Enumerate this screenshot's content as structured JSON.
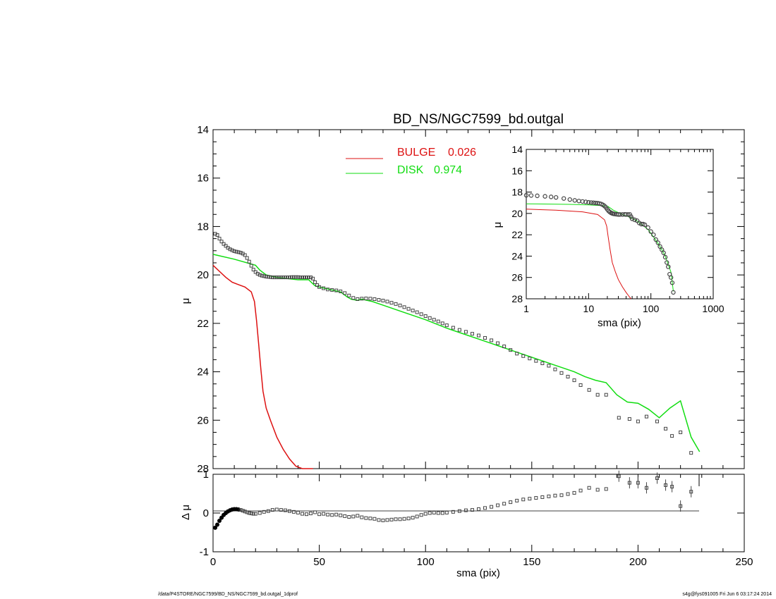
{
  "footer": {
    "left": "/data/P4STORE/NGC7599/BD_NS/NGC7599_bd.outgal_1dprof",
    "right": "s4g@fys091005  Fri Jun  6 03:17:24 2014"
  },
  "colors": {
    "bulge": "#dd1111",
    "disk": "#11dd11",
    "data": "#444444"
  },
  "chart_data": [
    {
      "type": "line",
      "panel": "main",
      "title": "BD_NS/NGC7599_bd.outgal",
      "xlabel": "",
      "ylabel": "μ",
      "xlim": [
        0,
        250
      ],
      "ylim": [
        28,
        14
      ],
      "y_ticks": [
        14,
        16,
        18,
        20,
        22,
        24,
        26,
        28
      ],
      "y_tick_labels": [
        "14",
        "16",
        "18",
        "20",
        "22",
        "24",
        "26",
        "28"
      ],
      "legend": [
        {
          "label": "BULGE",
          "value": "0.026",
          "color": "#dd1111"
        },
        {
          "label": "DISK",
          "value": "0.974",
          "color": "#11dd11"
        }
      ],
      "series": [
        {
          "name": "BULGE",
          "color": "#dd1111",
          "x": [
            0,
            3,
            6,
            9,
            12,
            15,
            18,
            19.5,
            20.5,
            21.5,
            22.5,
            23.5,
            25,
            27,
            30,
            33,
            36,
            39,
            42,
            45,
            47
          ],
          "y": [
            19.6,
            19.85,
            20.1,
            20.3,
            20.4,
            20.5,
            20.7,
            21.1,
            21.9,
            22.9,
            23.9,
            24.8,
            25.5,
            26.0,
            26.7,
            27.2,
            27.6,
            27.9,
            28.0,
            28.2,
            28.4
          ]
        },
        {
          "name": "DISK",
          "color": "#11dd11",
          "x": [
            0,
            10,
            20,
            22,
            25,
            30,
            40,
            45,
            48,
            50,
            55,
            60,
            63,
            65,
            68,
            70,
            75,
            80,
            90,
            100,
            110,
            120,
            130,
            135,
            140,
            145,
            150,
            155,
            160,
            165,
            170,
            175,
            180,
            185,
            190,
            195,
            200,
            205,
            210,
            215,
            220,
            225,
            229
          ],
          "y": [
            19.15,
            19.35,
            19.6,
            19.8,
            20.0,
            20.1,
            20.2,
            20.2,
            20.45,
            20.5,
            20.6,
            20.7,
            20.9,
            21.0,
            21.05,
            21.0,
            21.1,
            21.25,
            21.55,
            21.85,
            22.2,
            22.5,
            22.8,
            22.95,
            23.1,
            23.25,
            23.4,
            23.55,
            23.7,
            23.85,
            24.0,
            24.2,
            24.35,
            24.45,
            24.95,
            25.25,
            25.3,
            25.55,
            25.9,
            25.5,
            25.2,
            26.7,
            27.3
          ]
        },
        {
          "name": "",
          "style": "markers",
          "color": "#444444",
          "x": [
            1,
            2,
            3,
            4,
            5,
            6,
            7,
            8,
            9,
            10,
            11,
            12,
            13,
            14,
            15,
            16,
            17,
            18,
            19,
            20,
            21,
            22,
            23,
            24,
            25,
            26,
            27,
            28,
            29,
            30,
            31,
            32,
            33,
            34,
            35,
            36,
            37,
            38,
            39,
            40,
            41,
            42,
            43,
            44,
            45,
            46,
            47,
            48,
            49,
            50,
            52,
            54,
            56,
            58,
            60,
            62,
            64,
            66,
            68,
            70,
            72,
            74,
            76,
            78,
            80,
            82,
            84,
            86,
            88,
            90,
            92,
            94,
            96,
            98,
            100,
            102,
            104,
            106,
            108,
            110,
            113,
            116,
            119,
            122,
            125,
            128,
            131,
            134,
            137,
            140,
            143,
            146,
            149,
            152,
            155,
            158,
            161,
            164,
            167,
            170,
            173,
            177,
            181,
            185,
            191,
            196,
            200,
            204,
            209,
            213,
            216,
            220,
            225
          ],
          "y": [
            18.3,
            18.35,
            18.5,
            18.62,
            18.72,
            18.8,
            18.88,
            18.94,
            18.98,
            19.02,
            19.04,
            19.06,
            19.08,
            19.12,
            19.18,
            19.3,
            19.45,
            19.62,
            19.78,
            19.88,
            19.95,
            20.0,
            20.03,
            20.05,
            20.07,
            20.08,
            20.09,
            20.1,
            20.1,
            20.1,
            20.1,
            20.1,
            20.1,
            20.1,
            20.1,
            20.1,
            20.09,
            20.09,
            20.09,
            20.09,
            20.1,
            20.1,
            20.1,
            20.1,
            20.1,
            20.1,
            20.15,
            20.3,
            20.42,
            20.5,
            20.55,
            20.6,
            20.62,
            20.64,
            20.68,
            20.75,
            20.85,
            20.95,
            21.0,
            20.98,
            20.97,
            20.98,
            21.0,
            21.03,
            21.06,
            21.1,
            21.15,
            21.2,
            21.26,
            21.33,
            21.4,
            21.47,
            21.54,
            21.62,
            21.7,
            21.78,
            21.85,
            21.92,
            22.0,
            22.08,
            22.18,
            22.27,
            22.35,
            22.43,
            22.5,
            22.6,
            22.7,
            22.82,
            22.95,
            23.1,
            23.25,
            23.35,
            23.45,
            23.55,
            23.65,
            23.75,
            23.9,
            24.05,
            24.2,
            24.35,
            24.55,
            24.75,
            24.95,
            24.95,
            25.9,
            25.95,
            26.05,
            25.85,
            26.05,
            26.35,
            26.65,
            26.5,
            27.35
          ]
        }
      ]
    },
    {
      "type": "scatter",
      "panel": "residual",
      "xlabel": "sma (pix)",
      "ylabel": "Δ μ",
      "xlim": [
        0,
        250
      ],
      "ylim": [
        -1,
        1
      ],
      "x_ticks": [
        0,
        50,
        100,
        150,
        200,
        250
      ],
      "x_tick_labels": [
        "0",
        "50",
        "100",
        "150",
        "200",
        "250"
      ],
      "y_ticks": [
        1,
        0,
        -1
      ],
      "y_tick_labels": [
        "1",
        "0",
        "-1"
      ],
      "series": [
        {
          "name": "",
          "style": "markers",
          "color": "#444444",
          "x": [
            1,
            2,
            3,
            4,
            5,
            6,
            7,
            8,
            9,
            10,
            11,
            12,
            13,
            14,
            15,
            16,
            17,
            18,
            19,
            20,
            22,
            24,
            26,
            28,
            30,
            32,
            34,
            36,
            38,
            40,
            42,
            44,
            46,
            48,
            50,
            52,
            54,
            56,
            58,
            60,
            62,
            64,
            66,
            68,
            70,
            72,
            74,
            76,
            78,
            80,
            82,
            84,
            86,
            88,
            90,
            92,
            94,
            96,
            98,
            100,
            102,
            104,
            106,
            108,
            110,
            113,
            116,
            119,
            122,
            125,
            128,
            131,
            134,
            137,
            140,
            143,
            146,
            149,
            152,
            155,
            158,
            161,
            164,
            167,
            170,
            173,
            177,
            181,
            185,
            191,
            196,
            200,
            204,
            209,
            213,
            216,
            220,
            225
          ],
          "y": [
            -0.38,
            -0.3,
            -0.2,
            -0.12,
            -0.05,
            0.0,
            0.04,
            0.07,
            0.09,
            0.1,
            0.1,
            0.09,
            0.08,
            0.06,
            0.04,
            0.02,
            0.0,
            -0.01,
            -0.02,
            -0.02,
            0.0,
            0.03,
            0.05,
            0.08,
            0.09,
            0.08,
            0.07,
            0.05,
            0.03,
            0.01,
            -0.02,
            -0.03,
            -0.01,
            0.02,
            -0.03,
            -0.02,
            -0.04,
            -0.05,
            -0.04,
            -0.06,
            -0.08,
            -0.1,
            -0.09,
            -0.07,
            -0.11,
            -0.13,
            -0.14,
            -0.15,
            -0.18,
            -0.19,
            -0.18,
            -0.17,
            -0.16,
            -0.16,
            -0.15,
            -0.14,
            -0.12,
            -0.09,
            -0.05,
            -0.02,
            0.0,
            0.01,
            0.0,
            0.0,
            0.01,
            0.03,
            0.05,
            0.07,
            0.08,
            0.1,
            0.13,
            0.16,
            0.2,
            0.24,
            0.28,
            0.32,
            0.35,
            0.37,
            0.39,
            0.41,
            0.43,
            0.45,
            0.46,
            0.49,
            0.52,
            0.58,
            0.65,
            0.6,
            0.62,
            0.95,
            0.78,
            0.78,
            0.65,
            0.9,
            0.72,
            0.68,
            0.18,
            0.55
          ]
        }
      ]
    },
    {
      "type": "line",
      "panel": "inset",
      "xlabel": "sma (pix)",
      "ylabel": "μ",
      "x_scale": "log",
      "xlim": [
        1,
        1000
      ],
      "ylim": [
        28,
        14
      ],
      "x_ticks": [
        1,
        10,
        100,
        1000
      ],
      "x_tick_labels": [
        "1",
        "10",
        "100",
        "1000"
      ],
      "y_ticks": [
        14,
        16,
        18,
        20,
        22,
        24,
        26,
        28
      ],
      "y_tick_labels": [
        "14",
        "16",
        "18",
        "20",
        "22",
        "24",
        "26",
        "28"
      ],
      "series": [
        {
          "name": "BULGE",
          "color": "#dd1111",
          "x": [
            1,
            3,
            8,
            14,
            18,
            19.5,
            20.5,
            22,
            24,
            27,
            30,
            35,
            40,
            45,
            48
          ],
          "y": [
            19.6,
            19.7,
            19.85,
            20.1,
            20.6,
            21.2,
            22.1,
            23.3,
            24.6,
            25.5,
            26.2,
            26.9,
            27.4,
            27.8,
            28.0
          ]
        },
        {
          "name": "DISK",
          "color": "#11dd11",
          "x": [
            1,
            5,
            10,
            20,
            25,
            35,
            48,
            60,
            70,
            90,
            110,
            130,
            150,
            170,
            190,
            210,
            229
          ],
          "y": [
            19.1,
            19.15,
            19.2,
            19.3,
            19.7,
            20.1,
            20.4,
            20.7,
            21.0,
            21.5,
            22.2,
            22.8,
            23.4,
            24.0,
            24.8,
            25.5,
            27.3
          ]
        },
        {
          "name": "",
          "style": "markers",
          "color": "#444444",
          "x": [
            1,
            1.2,
            1.5,
            2,
            2.5,
            3,
            4,
            5,
            6,
            7,
            8,
            9,
            10,
            11,
            12,
            13,
            14,
            15,
            16,
            17,
            18,
            19,
            20,
            21,
            22,
            23,
            24,
            25,
            26,
            28,
            30,
            32,
            35,
            38,
            40,
            43,
            46,
            48,
            50,
            55,
            60,
            65,
            70,
            75,
            80,
            90,
            100,
            110,
            120,
            130,
            140,
            150,
            160,
            170,
            180,
            190,
            200,
            210,
            220,
            229
          ],
          "y": [
            18.3,
            18.32,
            18.35,
            18.4,
            18.45,
            18.5,
            18.6,
            18.7,
            18.78,
            18.84,
            18.88,
            18.92,
            18.96,
            18.98,
            19.0,
            19.02,
            19.04,
            19.07,
            19.12,
            19.2,
            19.3,
            19.45,
            19.62,
            19.78,
            19.88,
            19.95,
            20.0,
            20.03,
            20.05,
            20.08,
            20.1,
            20.1,
            20.1,
            20.09,
            20.1,
            20.1,
            20.1,
            20.3,
            20.5,
            20.6,
            20.68,
            20.9,
            21.0,
            21.0,
            21.06,
            21.33,
            21.7,
            22.0,
            22.45,
            22.75,
            23.1,
            23.4,
            23.7,
            24.1,
            24.6,
            25.0,
            25.7,
            26.0,
            26.5,
            27.4
          ]
        }
      ]
    }
  ]
}
